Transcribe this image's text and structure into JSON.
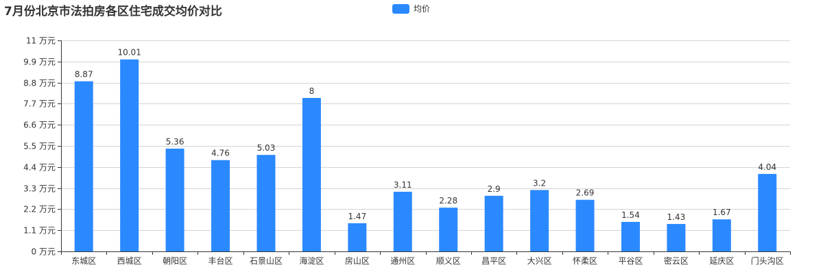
{
  "chart_data": {
    "type": "bar",
    "title": "7月份北京市法拍房各区住宅成交均价对比",
    "legend": {
      "position": "top-center",
      "entries": [
        "均价"
      ]
    },
    "grid": true,
    "y_unit": "万元",
    "ylim": [
      0,
      11
    ],
    "y_ticks": [
      0,
      1.1,
      2.2,
      3.3,
      4.4,
      5.5,
      6.6,
      7.7,
      8.8,
      9.9,
      11
    ],
    "categories": [
      "东城区",
      "西城区",
      "朝阳区",
      "丰台区",
      "石景山区",
      "海淀区",
      "房山区",
      "通州区",
      "顺义区",
      "昌平区",
      "大兴区",
      "怀柔区",
      "平谷区",
      "密云区",
      "延庆区",
      "门头沟区"
    ],
    "series": [
      {
        "name": "均价",
        "color": "#2b89ff",
        "values": [
          8.87,
          10.01,
          5.36,
          4.76,
          5.03,
          8,
          1.47,
          3.11,
          2.28,
          2.9,
          3.2,
          2.69,
          1.54,
          1.43,
          1.67,
          4.04
        ]
      }
    ]
  }
}
